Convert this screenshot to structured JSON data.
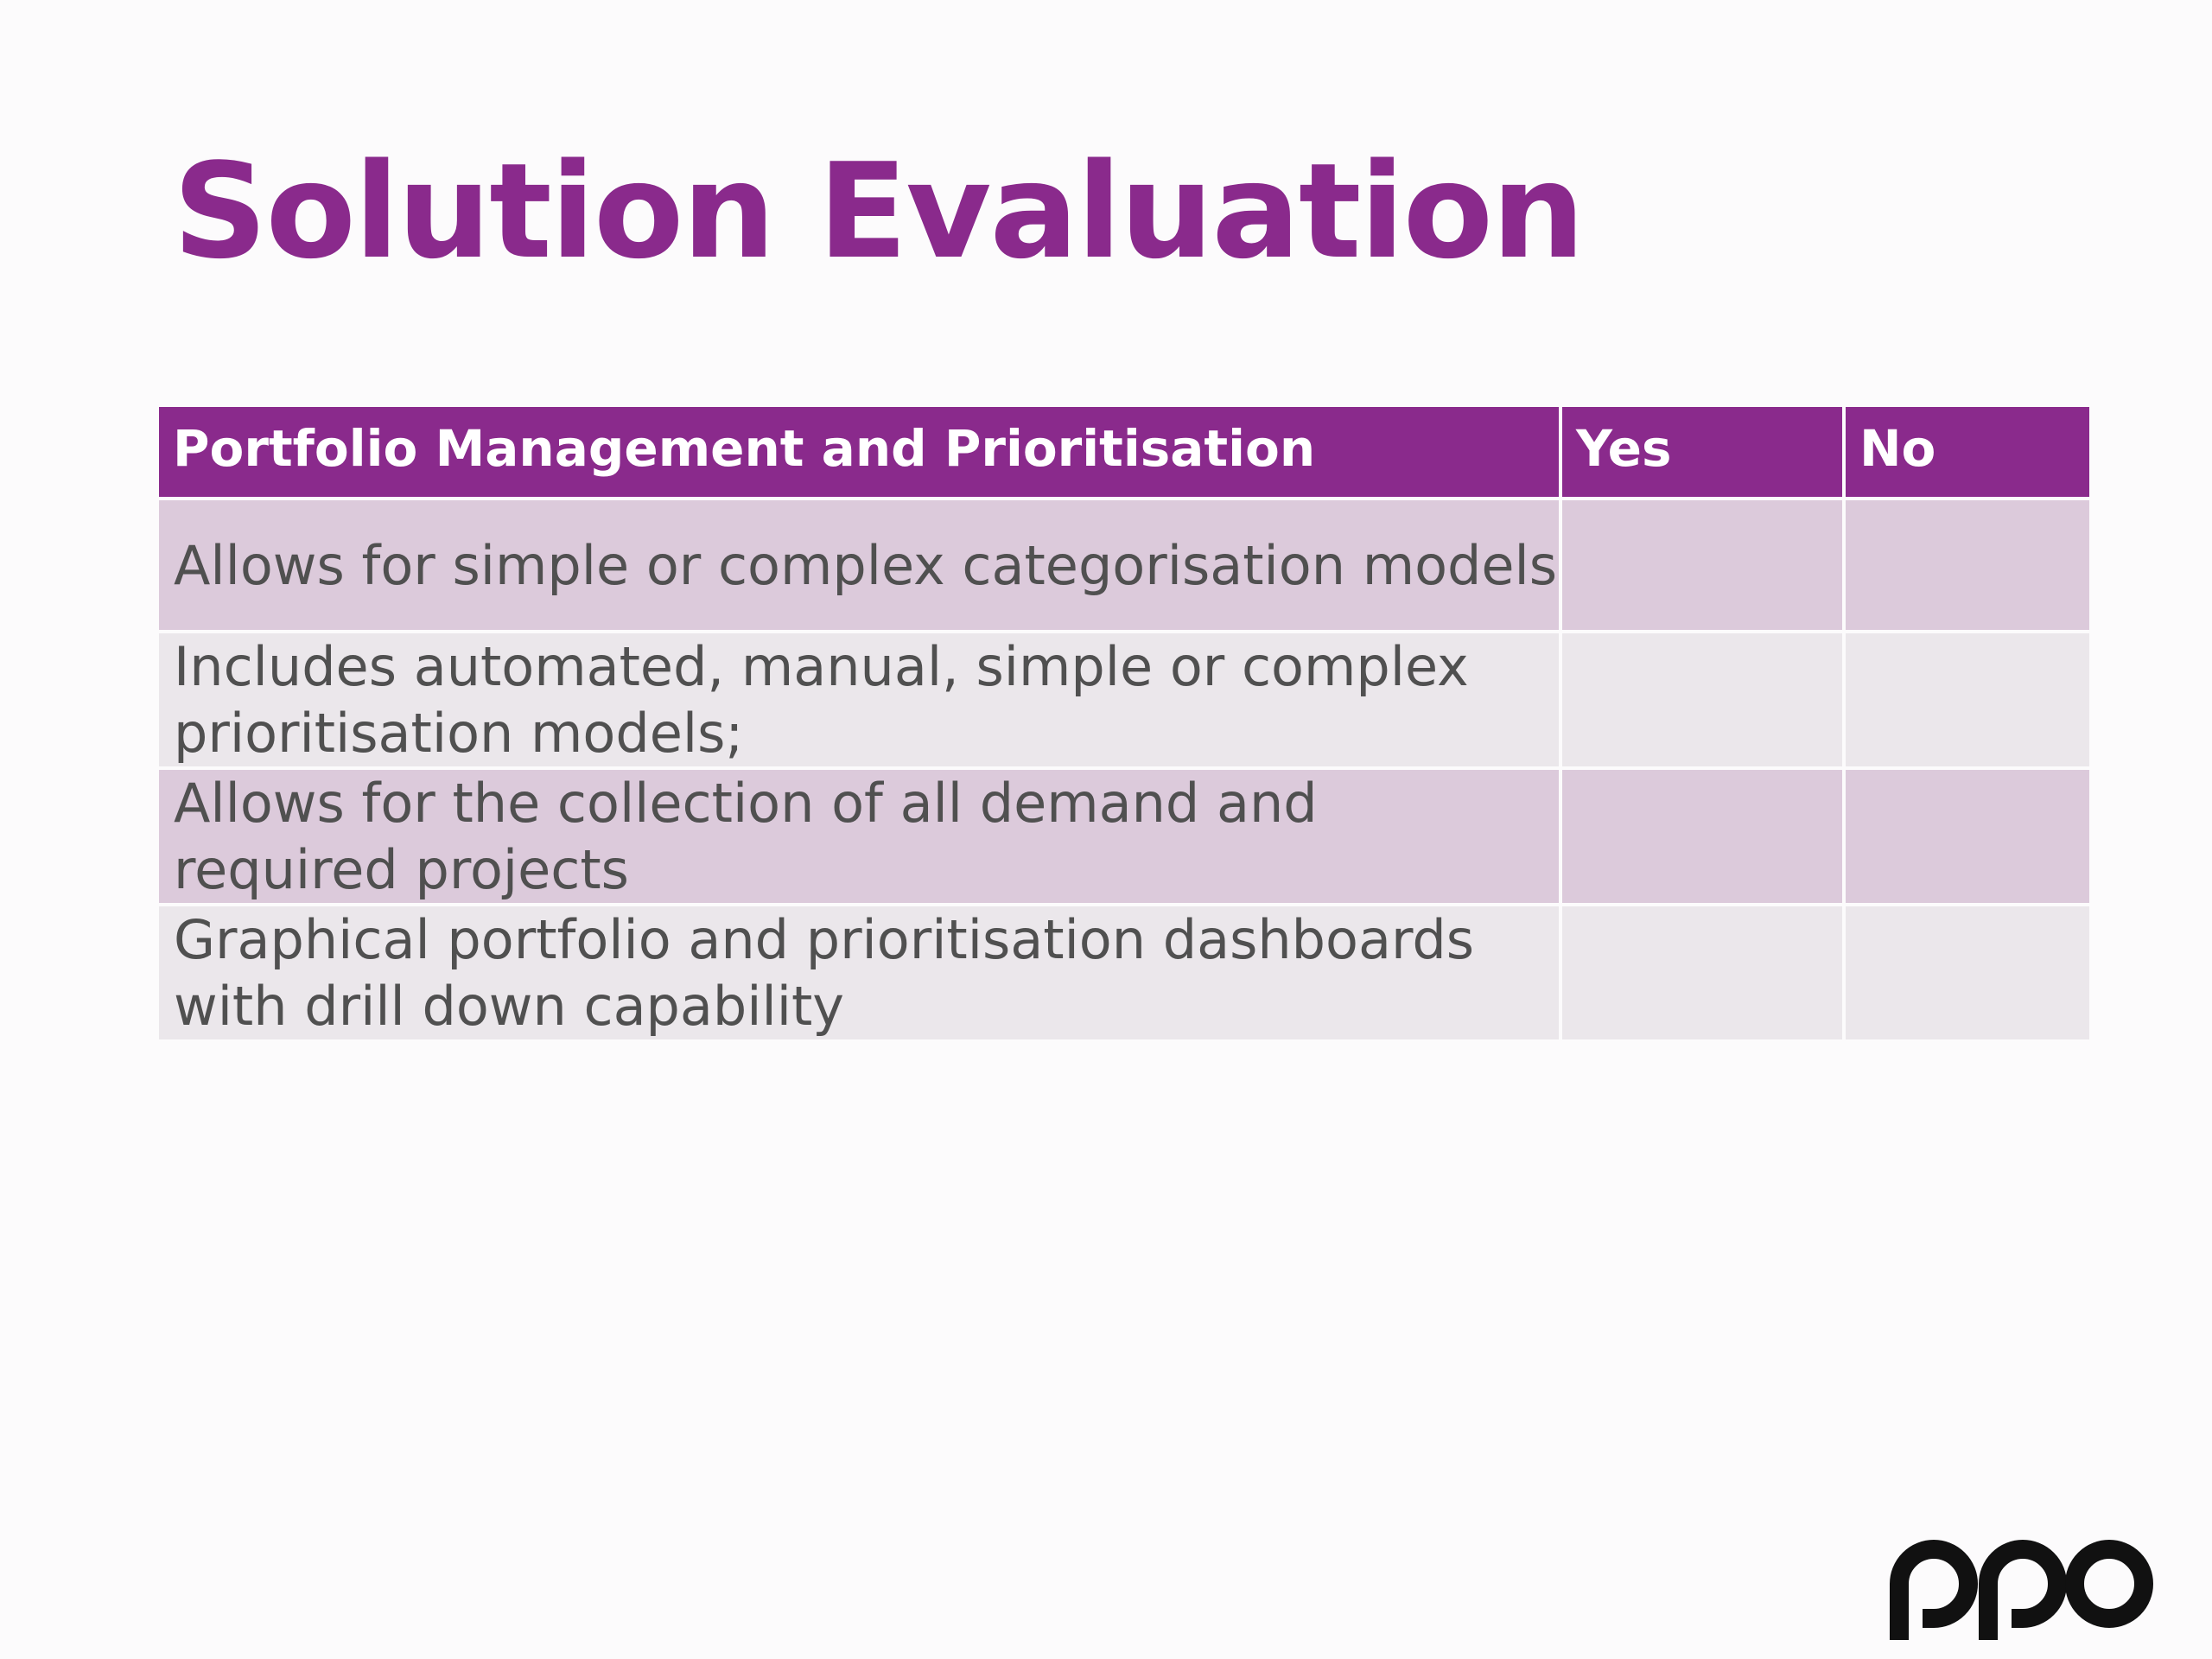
{
  "colors": {
    "accent": "#8a2a8c",
    "header_bg": "#8a2a8c",
    "row_odd_bg": "#dccadb",
    "row_even_bg": "#ebe7eb",
    "logo": "#111111"
  },
  "slide": {
    "title": "Solution Evaluation"
  },
  "table": {
    "columns": [
      "Portfolio Management and Prioritisation",
      "Yes",
      "No"
    ],
    "rows": [
      {
        "criterion": "Allows for simple or complex categorisation models",
        "yes": "",
        "no": ""
      },
      {
        "criterion": "Includes automated, manual, simple or complex prioritisation models;",
        "yes": "",
        "no": ""
      },
      {
        "criterion": "Allows for the collection of all demand and required projects",
        "yes": "",
        "no": ""
      },
      {
        "criterion": "Graphical portfolio and prioritisation dashboards with drill down capability",
        "yes": "",
        "no": ""
      }
    ]
  },
  "logo": {
    "icon": "ppo-logo",
    "text": "ppo"
  }
}
